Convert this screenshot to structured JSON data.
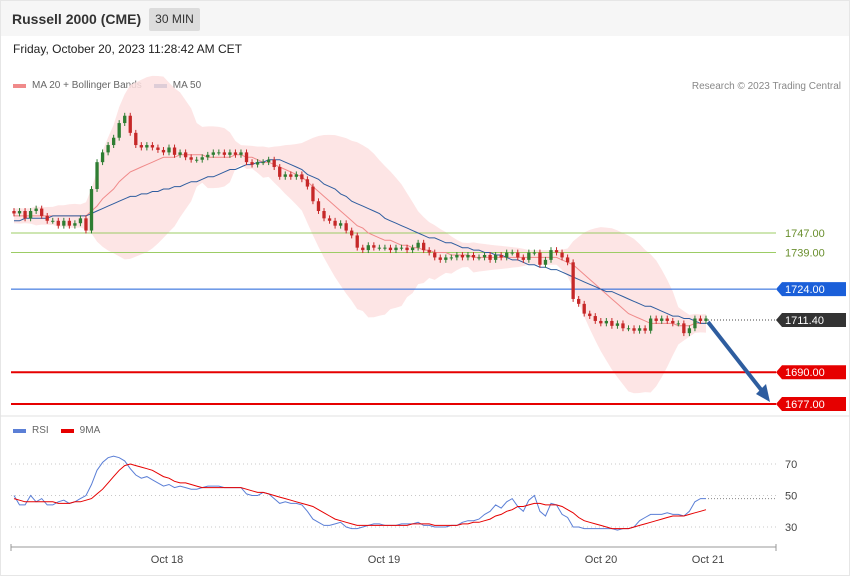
{
  "header": {
    "title": "Russell 2000 (CME)",
    "timeframe": "30 MIN"
  },
  "datetime": "Friday, October 20, 2023 11:28:42 AM CET",
  "legend_main": [
    {
      "label": "MA 20 + Bollinger Bands",
      "color": "#f08a8a"
    },
    {
      "label": "MA 50",
      "color": "#2e5d9f"
    }
  ],
  "legend_rsi": [
    {
      "label": "RSI",
      "color": "#5b7fd6"
    },
    {
      "label": "9MA",
      "color": "#e60000"
    }
  ],
  "credit": "Research © 2023 Trading Central",
  "colors": {
    "up": "#2e7d32",
    "down": "#c62828",
    "resistance": "#9ccc65",
    "pivot": "#1a5fd9",
    "support": "#e60000",
    "arrow": "#2e5d9f"
  },
  "chart_data": [
    {
      "type": "candlestick",
      "title": "",
      "x_ticks": [
        "Oct 18",
        "Oct 19",
        "Oct 20",
        "Oct 21"
      ],
      "ylim": [
        1670,
        1800
      ],
      "current_price": 1711.4,
      "levels": [
        {
          "value": 1747.0,
          "label": "1747.00",
          "kind": "resistance"
        },
        {
          "value": 1739.0,
          "label": "1739.00",
          "kind": "resistance"
        },
        {
          "value": 1724.0,
          "label": "1724.00",
          "kind": "pivot"
        },
        {
          "value": 1711.4,
          "label": "1711.40",
          "kind": "last"
        },
        {
          "value": 1690.0,
          "label": "1690.00",
          "kind": "support"
        },
        {
          "value": 1677.0,
          "label": "1677.00",
          "kind": "support"
        }
      ],
      "close": [
        1755,
        1756,
        1753,
        1756,
        1757,
        1754,
        1752,
        1752,
        1750,
        1752,
        1750,
        1751,
        1753,
        1748,
        1765,
        1776,
        1780,
        1783,
        1786,
        1792,
        1795,
        1788,
        1783,
        1782,
        1783,
        1782,
        1781,
        1780,
        1782,
        1779,
        1780,
        1778,
        1777,
        1777,
        1778,
        1779,
        1780,
        1780,
        1779,
        1780,
        1779,
        1780,
        1776,
        1775,
        1776,
        1776,
        1777,
        1774,
        1770,
        1771,
        1770,
        1771,
        1769,
        1766,
        1760,
        1756,
        1753,
        1752,
        1750,
        1751,
        1748,
        1746,
        1741,
        1740,
        1742,
        1741,
        1741,
        1741,
        1740,
        1741,
        1741,
        1740,
        1741,
        1743,
        1740,
        1739,
        1737,
        1736,
        1737,
        1737,
        1738,
        1737,
        1738,
        1737,
        1737,
        1738,
        1736,
        1738,
        1737,
        1739,
        1739,
        1737,
        1736,
        1739,
        1739,
        1734,
        1736,
        1740,
        1739,
        1737,
        1735,
        1720,
        1718,
        1714,
        1713,
        1711,
        1710,
        1711,
        1709,
        1710,
        1708,
        1708,
        1707,
        1708,
        1707,
        1712,
        1711,
        1712,
        1711,
        1710,
        1710,
        1706,
        1708,
        1712,
        1711,
        1712
      ],
      "ma20": [
        1754,
        1754,
        1754,
        1754,
        1754,
        1754,
        1754,
        1754,
        1754,
        1754,
        1754,
        1754,
        1754,
        1754,
        1756,
        1758,
        1761,
        1763,
        1765,
        1768,
        1770,
        1772,
        1773,
        1774,
        1775,
        1776,
        1777,
        1778,
        1778,
        1778,
        1779,
        1779,
        1779,
        1779,
        1779,
        1778,
        1778,
        1778,
        1778,
        1778,
        1779,
        1779,
        1778,
        1778,
        1777,
        1776,
        1776,
        1775,
        1774,
        1773,
        1772,
        1771,
        1770,
        1768,
        1766,
        1764,
        1762,
        1760,
        1758,
        1756,
        1754,
        1752,
        1750,
        1749,
        1747,
        1746,
        1745,
        1744,
        1744,
        1743,
        1742,
        1742,
        1741,
        1741,
        1740,
        1740,
        1739,
        1739,
        1739,
        1738,
        1738,
        1738,
        1738,
        1737,
        1737,
        1737,
        1737,
        1737,
        1737,
        1737,
        1737,
        1737,
        1737,
        1737,
        1737,
        1737,
        1737,
        1737,
        1737,
        1736,
        1735,
        1734,
        1732,
        1730,
        1728,
        1726,
        1724,
        1722,
        1720,
        1718,
        1716,
        1714,
        1713,
        1712,
        1711,
        1710,
        1710,
        1710,
        1710,
        1710,
        1709,
        1709,
        1709,
        1710,
        1710,
        1710
      ],
      "ma50": [
        1752,
        1752,
        1753,
        1753,
        1753,
        1753,
        1753,
        1754,
        1754,
        1754,
        1754,
        1754,
        1754,
        1754,
        1755,
        1756,
        1757,
        1758,
        1759,
        1760,
        1761,
        1762,
        1762,
        1763,
        1763,
        1764,
        1764,
        1765,
        1765,
        1766,
        1766,
        1767,
        1768,
        1768,
        1769,
        1770,
        1770,
        1771,
        1772,
        1773,
        1773,
        1774,
        1775,
        1775,
        1776,
        1776,
        1777,
        1777,
        1777,
        1776,
        1775,
        1774,
        1773,
        1771,
        1770,
        1769,
        1767,
        1766,
        1765,
        1763,
        1762,
        1760,
        1759,
        1758,
        1757,
        1756,
        1755,
        1753,
        1752,
        1751,
        1750,
        1749,
        1748,
        1747,
        1746,
        1745,
        1745,
        1744,
        1743,
        1743,
        1742,
        1741,
        1741,
        1740,
        1740,
        1739,
        1739,
        1738,
        1738,
        1737,
        1736,
        1736,
        1735,
        1734,
        1734,
        1733,
        1733,
        1732,
        1732,
        1731,
        1730,
        1729,
        1728,
        1727,
        1726,
        1725,
        1724,
        1723,
        1723,
        1722,
        1721,
        1720,
        1719,
        1718,
        1717,
        1717,
        1716,
        1715,
        1714,
        1713,
        1713,
        1712,
        1712,
        1711,
        1710,
        1710
      ],
      "projection": {
        "from": 1711.4,
        "to": 1677.0
      }
    },
    {
      "type": "line",
      "series_names": [
        "RSI",
        "9MA"
      ],
      "ylim": [
        20,
        80
      ],
      "y_ticks": [
        70,
        50,
        30
      ],
      "rsi": [
        50,
        44,
        44,
        50,
        46,
        48,
        44,
        44,
        46,
        47,
        45,
        46,
        48,
        50,
        57,
        66,
        71,
        74,
        75,
        74,
        72,
        67,
        63,
        61,
        62,
        60,
        58,
        56,
        57,
        55,
        56,
        55,
        54,
        54,
        55,
        56,
        56,
        56,
        55,
        55,
        55,
        55,
        51,
        50,
        50,
        52,
        51,
        48,
        45,
        46,
        45,
        45,
        44,
        40,
        35,
        33,
        31,
        31,
        32,
        33,
        30,
        29,
        29,
        30,
        31,
        32,
        32,
        31,
        31,
        31,
        32,
        32,
        32,
        33,
        31,
        31,
        30,
        30,
        30,
        31,
        31,
        33,
        34,
        34,
        35,
        38,
        40,
        44,
        42,
        46,
        48,
        43,
        40,
        47,
        50,
        40,
        37,
        45,
        44,
        38,
        36,
        30,
        30,
        29,
        29,
        29,
        29,
        29,
        29,
        28,
        29,
        29,
        30,
        34,
        36,
        38,
        38,
        38,
        39,
        38,
        38,
        37,
        40,
        46,
        48,
        48
      ],
      "ma9": [
        48,
        47,
        46,
        46,
        46,
        46,
        46,
        46,
        45,
        45,
        45,
        46,
        46,
        47,
        48,
        51,
        54,
        58,
        62,
        66,
        69,
        70,
        69,
        68,
        67,
        66,
        64,
        62,
        61,
        59,
        58,
        58,
        57,
        56,
        55,
        55,
        55,
        55,
        55,
        55,
        55,
        55,
        54,
        53,
        52,
        52,
        51,
        50,
        49,
        48,
        47,
        46,
        45,
        44,
        43,
        41,
        39,
        37,
        35,
        34,
        33,
        32,
        31,
        31,
        31,
        31,
        31,
        31,
        31,
        31,
        31,
        31,
        32,
        32,
        32,
        32,
        31,
        31,
        31,
        31,
        31,
        32,
        32,
        33,
        33,
        34,
        35,
        37,
        38,
        40,
        41,
        43,
        43,
        44,
        45,
        45,
        44,
        44,
        44,
        43,
        41,
        39,
        36,
        34,
        33,
        32,
        31,
        30,
        29,
        29,
        29,
        29,
        30,
        31,
        32,
        33,
        34,
        35,
        36,
        37,
        37,
        37,
        38,
        39,
        40,
        41
      ]
    }
  ]
}
